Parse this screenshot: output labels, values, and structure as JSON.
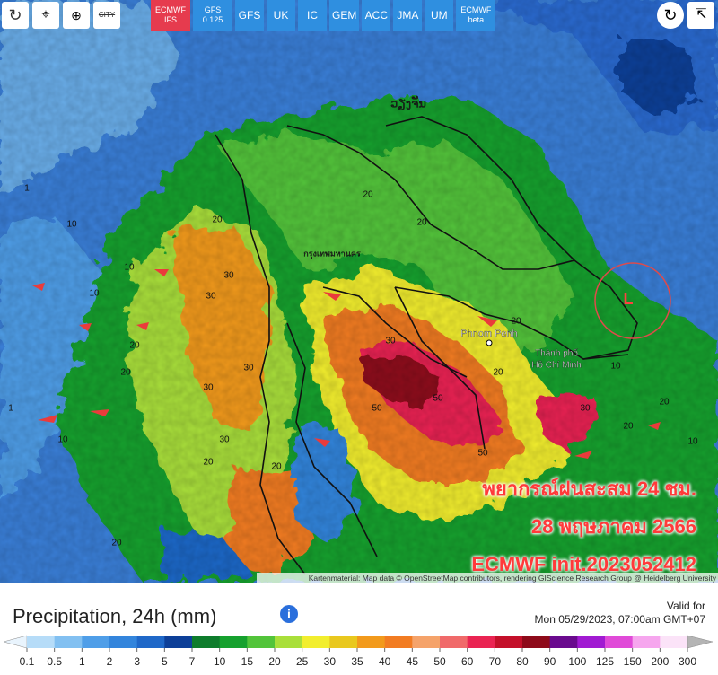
{
  "toolbar": {
    "city": "CITY",
    "models": [
      {
        "lines": [
          "ECMWF",
          "IFS"
        ],
        "active": true
      },
      {
        "lines": [
          "GFS",
          "0.125"
        ],
        "active": false
      },
      {
        "lines": [
          "GFS"
        ],
        "active": false
      },
      {
        "lines": [
          "UK"
        ],
        "active": false
      },
      {
        "lines": [
          "IC"
        ],
        "active": false
      },
      {
        "lines": [
          "GEM"
        ],
        "active": false
      },
      {
        "lines": [
          "ACC"
        ],
        "active": false
      },
      {
        "lines": [
          "JMA"
        ],
        "active": false
      },
      {
        "lines": [
          "UM"
        ],
        "active": false
      },
      {
        "lines": [
          "ECMWF",
          "beta"
        ],
        "active": false
      }
    ]
  },
  "map": {
    "places": [
      "ວຽງຈັນ",
      "กรุงเทพมหานคร",
      "Phnom Penh",
      "Thành phố",
      "Hồ Chí Minh"
    ],
    "pressure_center": "L",
    "overlay": [
      "พยากรณ์ฝนสะสม 24 ชม.",
      "28 พฤษภาคม 2566",
      "ECMWF init.2023052412"
    ],
    "attribution": "Kartenmaterial: Map data © OpenStreetMap contributors, rendering GIScience Research Group @ Heidelberg University",
    "contours": [
      "20",
      "20",
      "20",
      "20",
      "20",
      "30",
      "30",
      "30",
      "30",
      "30",
      "30",
      "50",
      "50",
      "50",
      "20",
      "20",
      "10",
      "10",
      "10",
      "10",
      "20",
      "20",
      "30",
      "20",
      "10",
      "10",
      "1",
      "1",
      "20",
      "20"
    ]
  },
  "legend": {
    "title": "Precipitation, 24h (mm)",
    "valid_label": "Valid for",
    "valid_time": "Mon 05/29/2023, 07:00am GMT+07",
    "below_color": "#e9f4fd",
    "scale": [
      {
        "label": "0.1",
        "color": "#b6dcf8"
      },
      {
        "label": "0.5",
        "color": "#82c0f1"
      },
      {
        "label": "1",
        "color": "#4f9ee8"
      },
      {
        "label": "2",
        "color": "#3385dc"
      },
      {
        "label": "3",
        "color": "#1f68c8"
      },
      {
        "label": "5",
        "color": "#0d3f98"
      },
      {
        "label": "7",
        "color": "#0e7c2c"
      },
      {
        "label": "10",
        "color": "#16a12e"
      },
      {
        "label": "15",
        "color": "#52c43a"
      },
      {
        "label": "20",
        "color": "#a9df3a"
      },
      {
        "label": "25",
        "color": "#f2ee2e"
      },
      {
        "label": "30",
        "color": "#e9c81e"
      },
      {
        "label": "35",
        "color": "#f29a1c"
      },
      {
        "label": "40",
        "color": "#f27c22"
      },
      {
        "label": "45",
        "color": "#f5a36a"
      },
      {
        "label": "50",
        "color": "#f06a6a"
      },
      {
        "label": "60",
        "color": "#ea2452"
      },
      {
        "label": "70",
        "color": "#c4102a"
      },
      {
        "label": "80",
        "color": "#8e0a1a"
      },
      {
        "label": "90",
        "color": "#6a0a8e"
      },
      {
        "label": "100",
        "color": "#a11ad2"
      },
      {
        "label": "125",
        "color": "#e04ad8"
      },
      {
        "label": "150",
        "color": "#f6a6ee"
      },
      {
        "label": "200",
        "color": "#fbe3f8"
      },
      {
        "label": "300",
        "color": "#b4b4b4"
      }
    ]
  }
}
